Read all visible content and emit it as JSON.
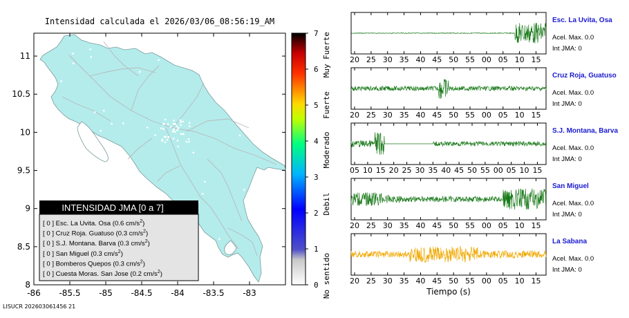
{
  "map": {
    "title": "Intensidad calculada el 2026/03/06_08:56:19_AM",
    "footer": "LISUCR 202603061456 21",
    "land_color": "#b4ecec",
    "x_ticks": [
      "-86",
      "-85.5",
      "-85",
      "-84.5",
      "-84",
      "-83.5",
      "-83"
    ],
    "y_ticks": [
      "11",
      "10.5",
      "10",
      "9.5",
      "9",
      "8.5",
      "8"
    ],
    "xlim": [
      -86,
      -82.5
    ],
    "ylim": [
      8,
      11.3
    ]
  },
  "colorbar": {
    "ticks": [
      "0",
      "1",
      "2",
      "3",
      "4",
      "5",
      "6",
      "7"
    ],
    "range": [
      0,
      7
    ],
    "categories": [
      "No sentido",
      "Debil",
      "Moderado",
      "Fuerte",
      "Muy Fuerte"
    ],
    "category_centers": [
      0.25,
      2.25,
      3.75,
      5.0,
      6.4
    ]
  },
  "legend": {
    "header": "INTENSIDAD JMA [0 a 7]",
    "unit_base": "cm/s",
    "unit_exp": "2",
    "items": [
      {
        "jma": "[ 0 ]",
        "name": "Esc. La Uvita. Osa",
        "accel": "0.6"
      },
      {
        "jma": "[ 0 ]",
        "name": "Cruz Roja. Guatuso",
        "accel": "0.3"
      },
      {
        "jma": "[ 0 ]",
        "name": "S.J. Montana. Barva",
        "accel": "0.3"
      },
      {
        "jma": "[ 0 ]",
        "name": "San Miguel",
        "accel": "0.3"
      },
      {
        "jma": "[ 0 ]",
        "name": "Bomberos Quepos",
        "accel": "0.3"
      },
      {
        "jma": "[ 0 ]",
        "name": "Cuesta Moras. San Jose",
        "accel": "0.2"
      }
    ]
  },
  "chart_data": [
    {
      "type": "line",
      "title": "Esc. La Uvita, Osa",
      "stats": [
        "Acel. Max. 0.0",
        "Int JMA: 0"
      ],
      "x_ticks": [
        "20",
        "25",
        "30",
        "35",
        "40",
        "45",
        "50",
        "55",
        "00",
        "05",
        "10",
        "15"
      ],
      "color": "#1a7a1a",
      "segments": [
        [
          0,
          0.84,
          0.02
        ],
        [
          0.84,
          1.0,
          0.55
        ]
      ]
    },
    {
      "type": "line",
      "title": "Cruz Roja, Guatuso",
      "stats": [
        "Acel. Max. 0.0",
        "Int JMA: 0"
      ],
      "x_ticks": [
        "20",
        "25",
        "30",
        "35",
        "40",
        "45",
        "50",
        "55",
        "00",
        "05",
        "10",
        "15"
      ],
      "color": "#1a7a1a",
      "segments": [
        [
          0,
          0.45,
          0.12
        ],
        [
          0.45,
          0.5,
          0.55
        ],
        [
          0.5,
          1.0,
          0.12
        ]
      ]
    },
    {
      "type": "line",
      "title": "S.J. Montana, Barva",
      "stats": [
        "Acel. Max. 0.0",
        "Int JMA: 0"
      ],
      "x_ticks": [
        "05",
        "10",
        "15",
        "20",
        "25",
        "30",
        "35",
        "40",
        "45",
        "50",
        "55",
        "00",
        "05",
        "10",
        "15"
      ],
      "color": "#1a7a1a",
      "segments": [
        [
          0,
          0.12,
          0.18
        ],
        [
          0.12,
          0.17,
          0.6
        ],
        [
          0.17,
          0.42,
          0.0
        ],
        [
          0.42,
          1.0,
          0.12
        ]
      ]
    },
    {
      "type": "line",
      "title": "San Miguel",
      "stats": [
        "Acel. Max. 0.0",
        "Int JMA: 0"
      ],
      "x_ticks": [
        "20",
        "25",
        "30",
        "35",
        "40",
        "45",
        "50",
        "55",
        "00",
        "05",
        "10",
        "15"
      ],
      "color": "#1a7a1a",
      "segments": [
        [
          0,
          0.16,
          0.35
        ],
        [
          0.16,
          0.25,
          0.2
        ],
        [
          0.25,
          0.78,
          0.15
        ],
        [
          0.78,
          1.0,
          0.55
        ]
      ]
    },
    {
      "type": "line",
      "title": "La Sabana",
      "stats": [
        "Acel. Max. 0.0",
        "Int JMA: 0"
      ],
      "x_ticks": [
        "20",
        "25",
        "30",
        "35",
        "40",
        "45",
        "50",
        "55",
        "00",
        "05",
        "10",
        "15"
      ],
      "xlabel": "Tiempo (s)",
      "color": "#f0a800",
      "segments": [
        [
          0,
          0.3,
          0.18
        ],
        [
          0.3,
          0.65,
          0.42
        ],
        [
          0.65,
          1.0,
          0.2
        ]
      ]
    }
  ]
}
